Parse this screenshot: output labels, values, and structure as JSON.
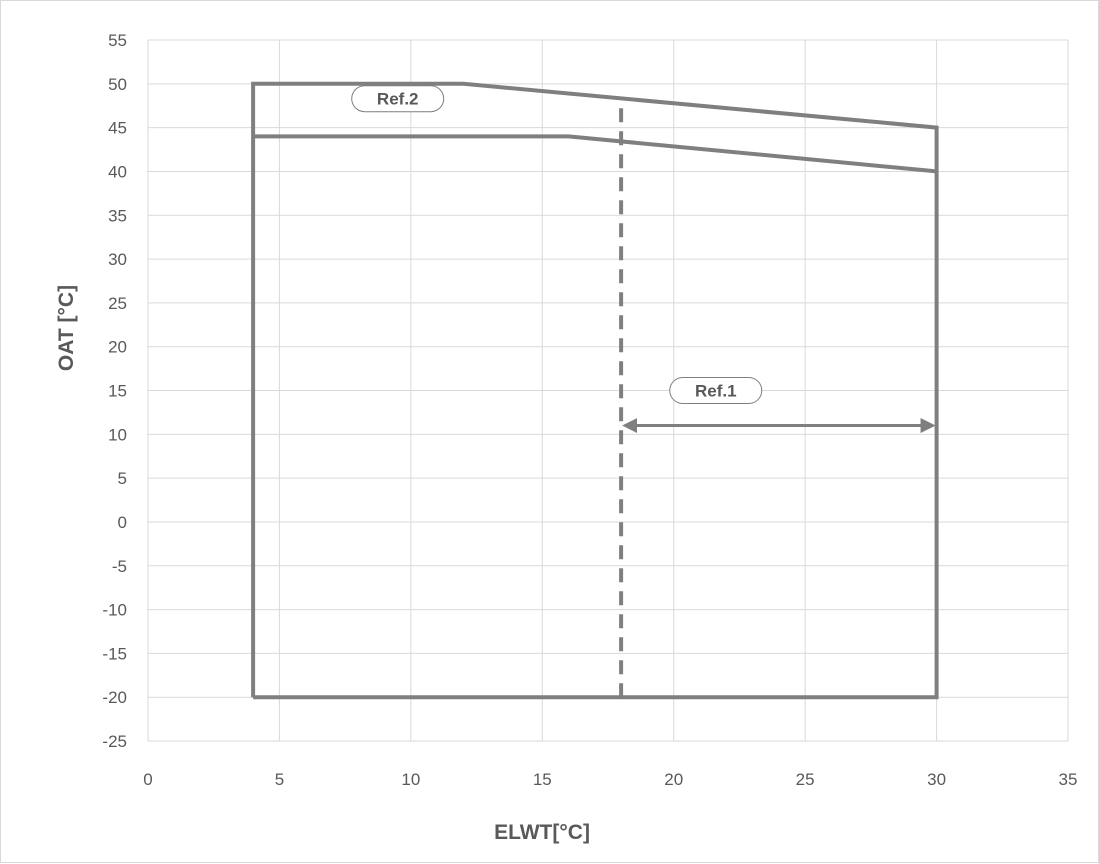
{
  "chart_data": {
    "type": "line",
    "title": "",
    "xlabel": "ELWT[°C]",
    "ylabel": "OAT [°C]",
    "xlim": [
      0,
      35
    ],
    "ylim": [
      -25,
      55
    ],
    "x_ticks": [
      0,
      5,
      10,
      15,
      20,
      25,
      30,
      35
    ],
    "y_ticks": [
      55,
      50,
      45,
      40,
      35,
      30,
      25,
      20,
      15,
      10,
      5,
      0,
      -5,
      -10,
      -15,
      -20,
      -25
    ],
    "grid": true,
    "legend": "none",
    "colors": {
      "series": "#7f7f7f",
      "grid": "#d9d9d9",
      "text": "#595959"
    },
    "series": [
      {
        "style": "solid",
        "points": [
          [
            4,
            -20
          ],
          [
            4,
            50
          ],
          [
            12,
            50
          ],
          [
            30,
            45
          ],
          [
            30,
            -20
          ],
          [
            4,
            -20
          ]
        ]
      },
      {
        "style": "solid",
        "points": [
          [
            4,
            44
          ],
          [
            16,
            44
          ],
          [
            30,
            40
          ]
        ]
      },
      {
        "style": "dashed",
        "points": [
          [
            18,
            -20
          ],
          [
            18,
            48.3
          ]
        ]
      }
    ],
    "annotations": [
      {
        "id": "ref1",
        "text": "Ref.1",
        "type": "double-arrow",
        "from": [
          18,
          11
        ],
        "to": [
          30,
          11
        ],
        "label_at": [
          21.6,
          15
        ]
      },
      {
        "id": "ref2",
        "text": "Ref.2",
        "type": "label",
        "label_at": [
          9.5,
          48.3
        ]
      }
    ]
  }
}
